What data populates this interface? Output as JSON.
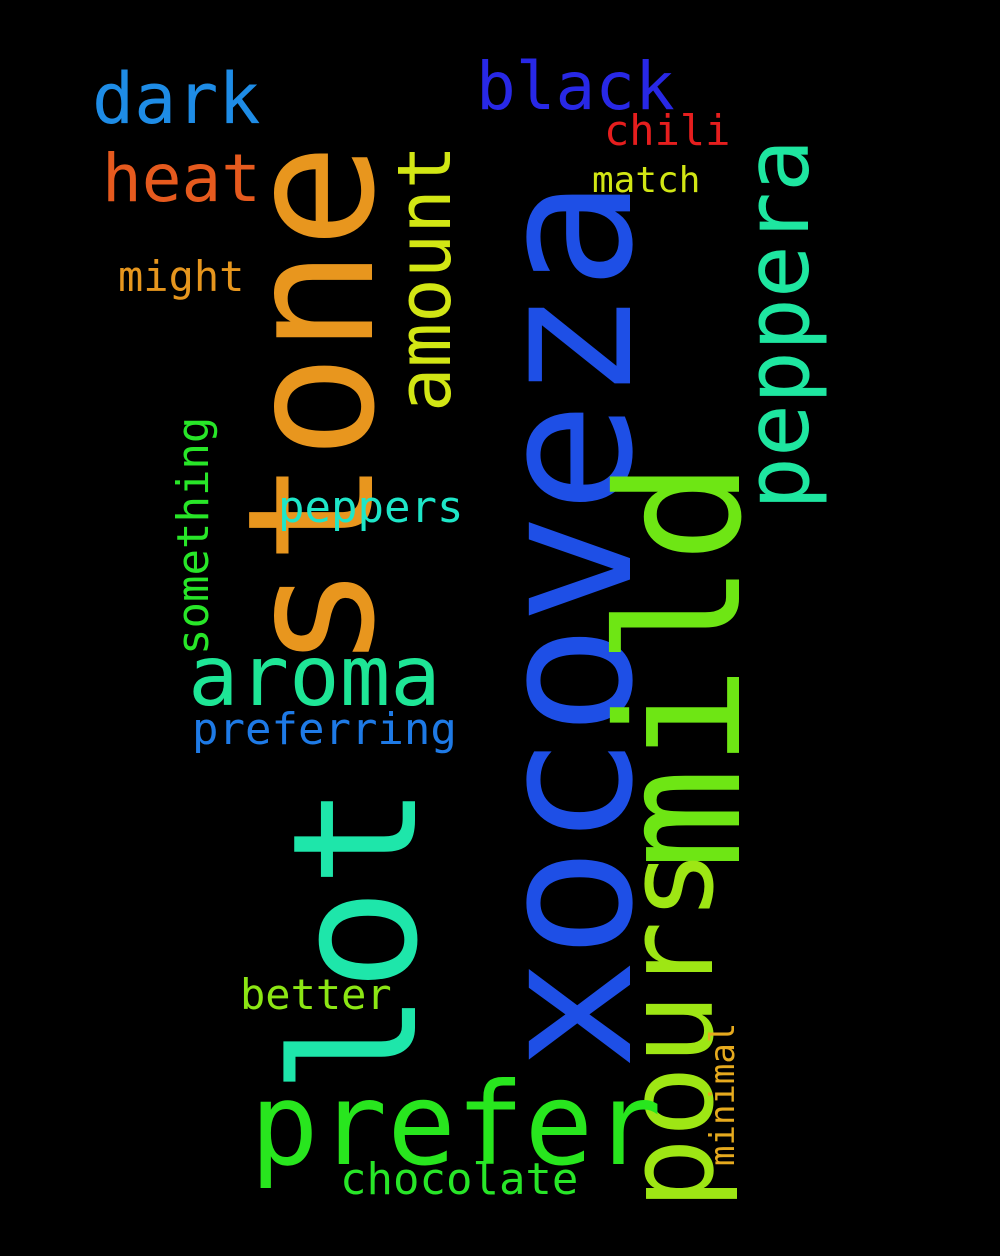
{
  "word_cloud": {
    "background": "#000000",
    "words": [
      {
        "id": "xocoveza",
        "text": "xocoveza",
        "color": "#1E4FE6",
        "orientation": "vertical"
      },
      {
        "id": "stone",
        "text": "stone",
        "color": "#E8961E",
        "orientation": "vertical"
      },
      {
        "id": "mild",
        "text": "mild",
        "color": "#6EE614",
        "orientation": "vertical"
      },
      {
        "id": "lot",
        "text": "lot",
        "color": "#1EE6AA",
        "orientation": "vertical"
      },
      {
        "id": "pours",
        "text": "pours",
        "color": "#9EE614",
        "orientation": "vertical"
      },
      {
        "id": "prefer",
        "text": "prefer",
        "color": "#28E61E",
        "orientation": "horizontal"
      },
      {
        "id": "aroma",
        "text": "aroma",
        "color": "#1EE696",
        "orientation": "horizontal"
      },
      {
        "id": "amount",
        "text": "amount",
        "color": "#D2E614",
        "orientation": "vertical"
      },
      {
        "id": "peppera",
        "text": "peppera",
        "color": "#1EE6A0",
        "orientation": "vertical"
      },
      {
        "id": "black",
        "text": "black",
        "color": "#2828E6",
        "orientation": "horizontal"
      },
      {
        "id": "dark",
        "text": "dark",
        "color": "#1E8CE6",
        "orientation": "horizontal"
      },
      {
        "id": "heat",
        "text": "heat",
        "color": "#E65A1E",
        "orientation": "horizontal"
      },
      {
        "id": "chili",
        "text": "chili",
        "color": "#E61E1E",
        "orientation": "horizontal"
      },
      {
        "id": "match",
        "text": "match",
        "color": "#D2E614",
        "orientation": "horizontal"
      },
      {
        "id": "might",
        "text": "might",
        "color": "#E6961E",
        "orientation": "horizontal"
      },
      {
        "id": "something",
        "text": "something",
        "color": "#28E628",
        "orientation": "vertical"
      },
      {
        "id": "peppers",
        "text": "peppers",
        "color": "#1EE6C8",
        "orientation": "horizontal"
      },
      {
        "id": "preferring",
        "text": "preferring",
        "color": "#1E7AE6",
        "orientation": "horizontal"
      },
      {
        "id": "better",
        "text": "better",
        "color": "#8CE614",
        "orientation": "horizontal"
      },
      {
        "id": "chocolate",
        "text": "chocolate",
        "color": "#28E628",
        "orientation": "horizontal"
      },
      {
        "id": "minimal",
        "text": "minimal",
        "color": "#E6AA1E",
        "orientation": "vertical"
      }
    ]
  }
}
